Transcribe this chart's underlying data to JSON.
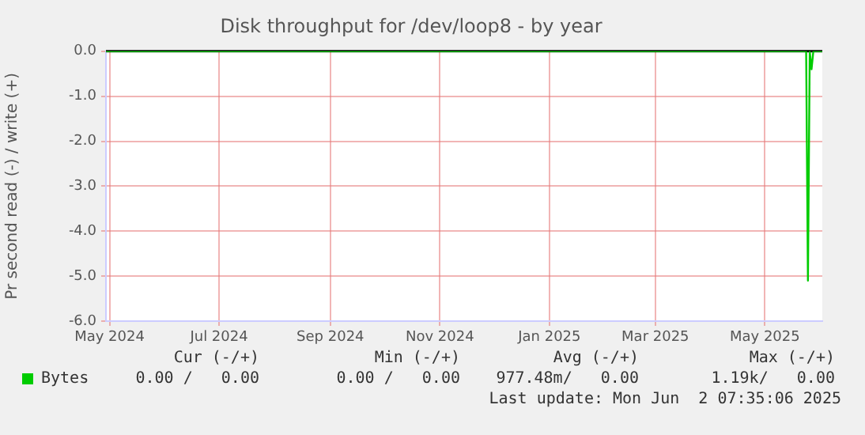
{
  "chart_data": {
    "type": "line",
    "title": "Disk throughput for /dev/loop8 - by year",
    "ylabel": "Pr second read (-) / write (+)",
    "series": [
      {
        "name": "Bytes",
        "color": "#00cc00",
        "x": [
          "2024-04-29",
          "2025-05-24",
          "2025-05-25",
          "2025-05-26",
          "2025-05-27",
          "2025-05-28",
          "2025-06-02"
        ],
        "values": [
          0,
          0,
          -5.1,
          0,
          -0.4,
          0,
          0
        ]
      }
    ],
    "xlim": [
      "2024-04-29",
      "2025-06-02"
    ],
    "xticks": [
      {
        "value": "2024-05-01",
        "label": "May 2024"
      },
      {
        "value": "2024-07-01",
        "label": "Jul 2024"
      },
      {
        "value": "2024-09-01",
        "label": "Sep 2024"
      },
      {
        "value": "2024-11-01",
        "label": "Nov 2024"
      },
      {
        "value": "2025-01-01",
        "label": "Jan 2025"
      },
      {
        "value": "2025-03-01",
        "label": "Mar 2025"
      },
      {
        "value": "2025-05-01",
        "label": "May 2025"
      }
    ],
    "ylim": [
      -6,
      0
    ],
    "yticks": [
      {
        "value": -6,
        "label": "-6.0"
      },
      {
        "value": -5,
        "label": "-5.0"
      },
      {
        "value": -4,
        "label": "-4.0"
      },
      {
        "value": -3,
        "label": "-3.0"
      },
      {
        "value": -2,
        "label": "-2.0"
      },
      {
        "value": -1,
        "label": "-1.0"
      },
      {
        "value": 0,
        "label": "0.0"
      }
    ],
    "ref_lines": [
      {
        "axis": "y",
        "value": 0,
        "color": "#000000"
      }
    ],
    "grid": true,
    "legend": "bottom left",
    "marker": "none",
    "line_style": "solid",
    "annotations": [
      "Cur (-/+)",
      "Min (-/+)",
      "Avg (-/+)",
      "Max (-/+)",
      "0.00 /   0.00",
      "0.00 /   0.00",
      "977.48m/   0.00",
      "1.19k/   0.00",
      "Last update: Mon Jun  2 07:35:06 2025"
    ]
  }
}
